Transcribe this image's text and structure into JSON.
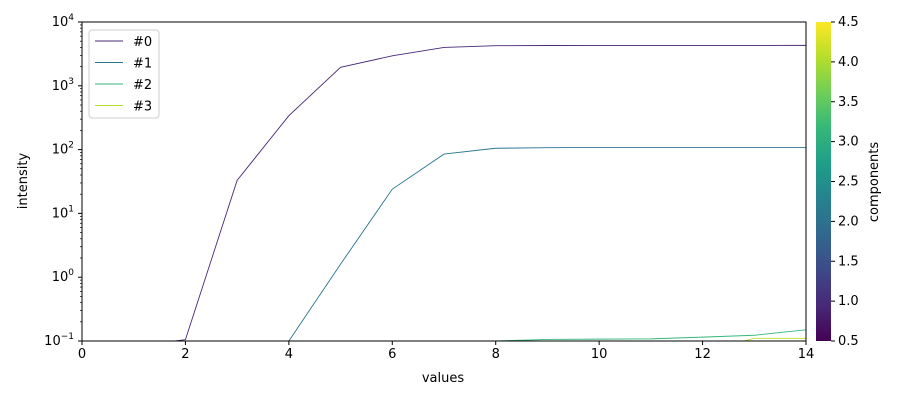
{
  "chart_data": {
    "type": "line",
    "title": "",
    "xlabel": "values",
    "ylabel": "intensity",
    "xlim": [
      0,
      14
    ],
    "ylim": [
      0.1,
      10000
    ],
    "yscale": "log",
    "grid": false,
    "legend_position": "top-left",
    "x_ticks": [
      0,
      2,
      4,
      6,
      8,
      10,
      12,
      14
    ],
    "x_tick_labels": [
      "0",
      "2",
      "4",
      "6",
      "8",
      "10",
      "12",
      "14"
    ],
    "y_ticks": [
      0.1,
      1,
      10,
      100,
      1000,
      10000
    ],
    "y_tick_labels": [
      {
        "base": "10",
        "exp": "−1"
      },
      {
        "base": "10",
        "exp": "0"
      },
      {
        "base": "10",
        "exp": "1"
      },
      {
        "base": "10",
        "exp": "2"
      },
      {
        "base": "10",
        "exp": "3"
      },
      {
        "base": "10",
        "exp": "4"
      }
    ],
    "series": [
      {
        "name": "#0",
        "color": "#482878",
        "x": [
          0,
          1,
          1.8,
          2,
          3,
          4,
          5,
          6,
          7,
          8,
          9,
          10,
          11,
          12,
          13,
          14
        ],
        "y": [
          0.1,
          0.1,
          0.1,
          0.105,
          33,
          340,
          1950,
          2950,
          4000,
          4250,
          4280,
          4290,
          4290,
          4290,
          4290,
          4300
        ]
      },
      {
        "name": "#1",
        "color": "#2b758e",
        "x": [
          0,
          1,
          2,
          3,
          3.9,
          4,
          5,
          6,
          7,
          8,
          9,
          10,
          11,
          12,
          13,
          14
        ],
        "y": [
          0.1,
          0.1,
          0.1,
          0.1,
          0.1,
          0.1,
          1.6,
          24,
          85,
          105,
          107,
          108,
          108,
          108,
          108,
          108
        ]
      },
      {
        "name": "#2",
        "color": "#35b779",
        "x": [
          0,
          7.5,
          8,
          9,
          10,
          11,
          12,
          13,
          14
        ],
        "y": [
          0.1,
          0.1,
          0.1,
          0.106,
          0.107,
          0.108,
          0.115,
          0.123,
          0.15
        ]
      },
      {
        "name": "#3",
        "color": "#b5de2b",
        "x": [
          0,
          12.8,
          13,
          14
        ],
        "y": [
          0.1,
          0.1,
          0.11,
          0.11
        ]
      }
    ],
    "colorbar": {
      "label": "components",
      "range": [
        0.5,
        4.5
      ],
      "ticks": [
        0.5,
        1.0,
        1.5,
        2.0,
        2.5,
        3.0,
        3.5,
        4.0,
        4.5
      ],
      "tick_labels": [
        "0.5",
        "1.0",
        "1.5",
        "2.0",
        "2.5",
        "3.0",
        "3.5",
        "4.0",
        "4.5"
      ],
      "colormap": [
        "#440154",
        "#482878",
        "#3e4989",
        "#31688e",
        "#26828e",
        "#1f9e89",
        "#35b779",
        "#6ece58",
        "#b5de2b",
        "#fde725"
      ]
    }
  }
}
